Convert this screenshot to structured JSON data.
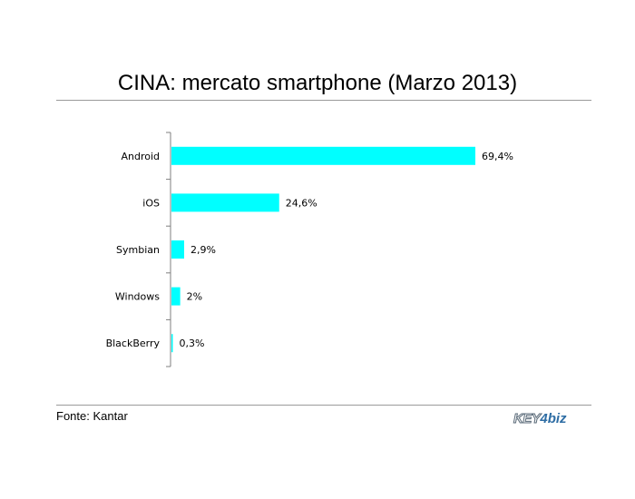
{
  "title": "CINA: mercato smartphone (Marzo 2013)",
  "source": "Fonte: Kantar",
  "logo": {
    "text": "KEY4biz",
    "part_key": "KEY",
    "part_sep": "4",
    "part_biz": "biz"
  },
  "colors": {
    "bar": "#00FFFF",
    "axis": "#7f7f7f",
    "text": "#000000"
  },
  "chart_data": {
    "type": "bar",
    "orientation": "horizontal",
    "title": "CINA: mercato smartphone (Marzo 2013)",
    "categories": [
      "Android",
      "iOS",
      "Symbian",
      "Windows",
      "BlackBerry"
    ],
    "values": [
      69.4,
      24.6,
      2.9,
      2.0,
      0.3
    ],
    "data_labels": [
      "69,4%",
      "24,6%",
      "2,9%",
      "2%",
      "0,3%"
    ],
    "xlim": [
      0,
      70
    ],
    "grid": false,
    "legend": "none"
  }
}
